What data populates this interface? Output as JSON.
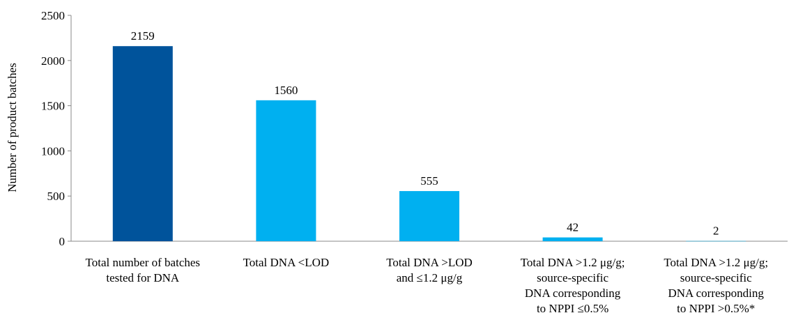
{
  "chart_data": {
    "type": "bar",
    "ylabel": "Number of product batches",
    "ylim": [
      0,
      2500
    ],
    "yticks": [
      0,
      500,
      1000,
      1500,
      2000,
      2500
    ],
    "grid": false,
    "categories": [
      [
        "Total number of batches",
        "tested for DNA"
      ],
      [
        "Total DNA <LOD"
      ],
      [
        "Total DNA >LOD",
        "and ≤1.2 μg/g"
      ],
      [
        "Total DNA >1.2 μg/g;",
        "source-specific",
        "DNA corresponding",
        "to NPPI ≤0.5%"
      ],
      [
        "Total DNA >1.2 μg/g;",
        "source-specific",
        "DNA corresponding",
        "to NPPI >0.5%*"
      ]
    ],
    "values": [
      2159,
      1560,
      555,
      42,
      2
    ],
    "data_labels": [
      "2159",
      "1560",
      "555",
      "42",
      "2"
    ],
    "colors": [
      "#00539B",
      "#00B0F0",
      "#00B0F0",
      "#00B0F0",
      "#00B0F0"
    ]
  }
}
